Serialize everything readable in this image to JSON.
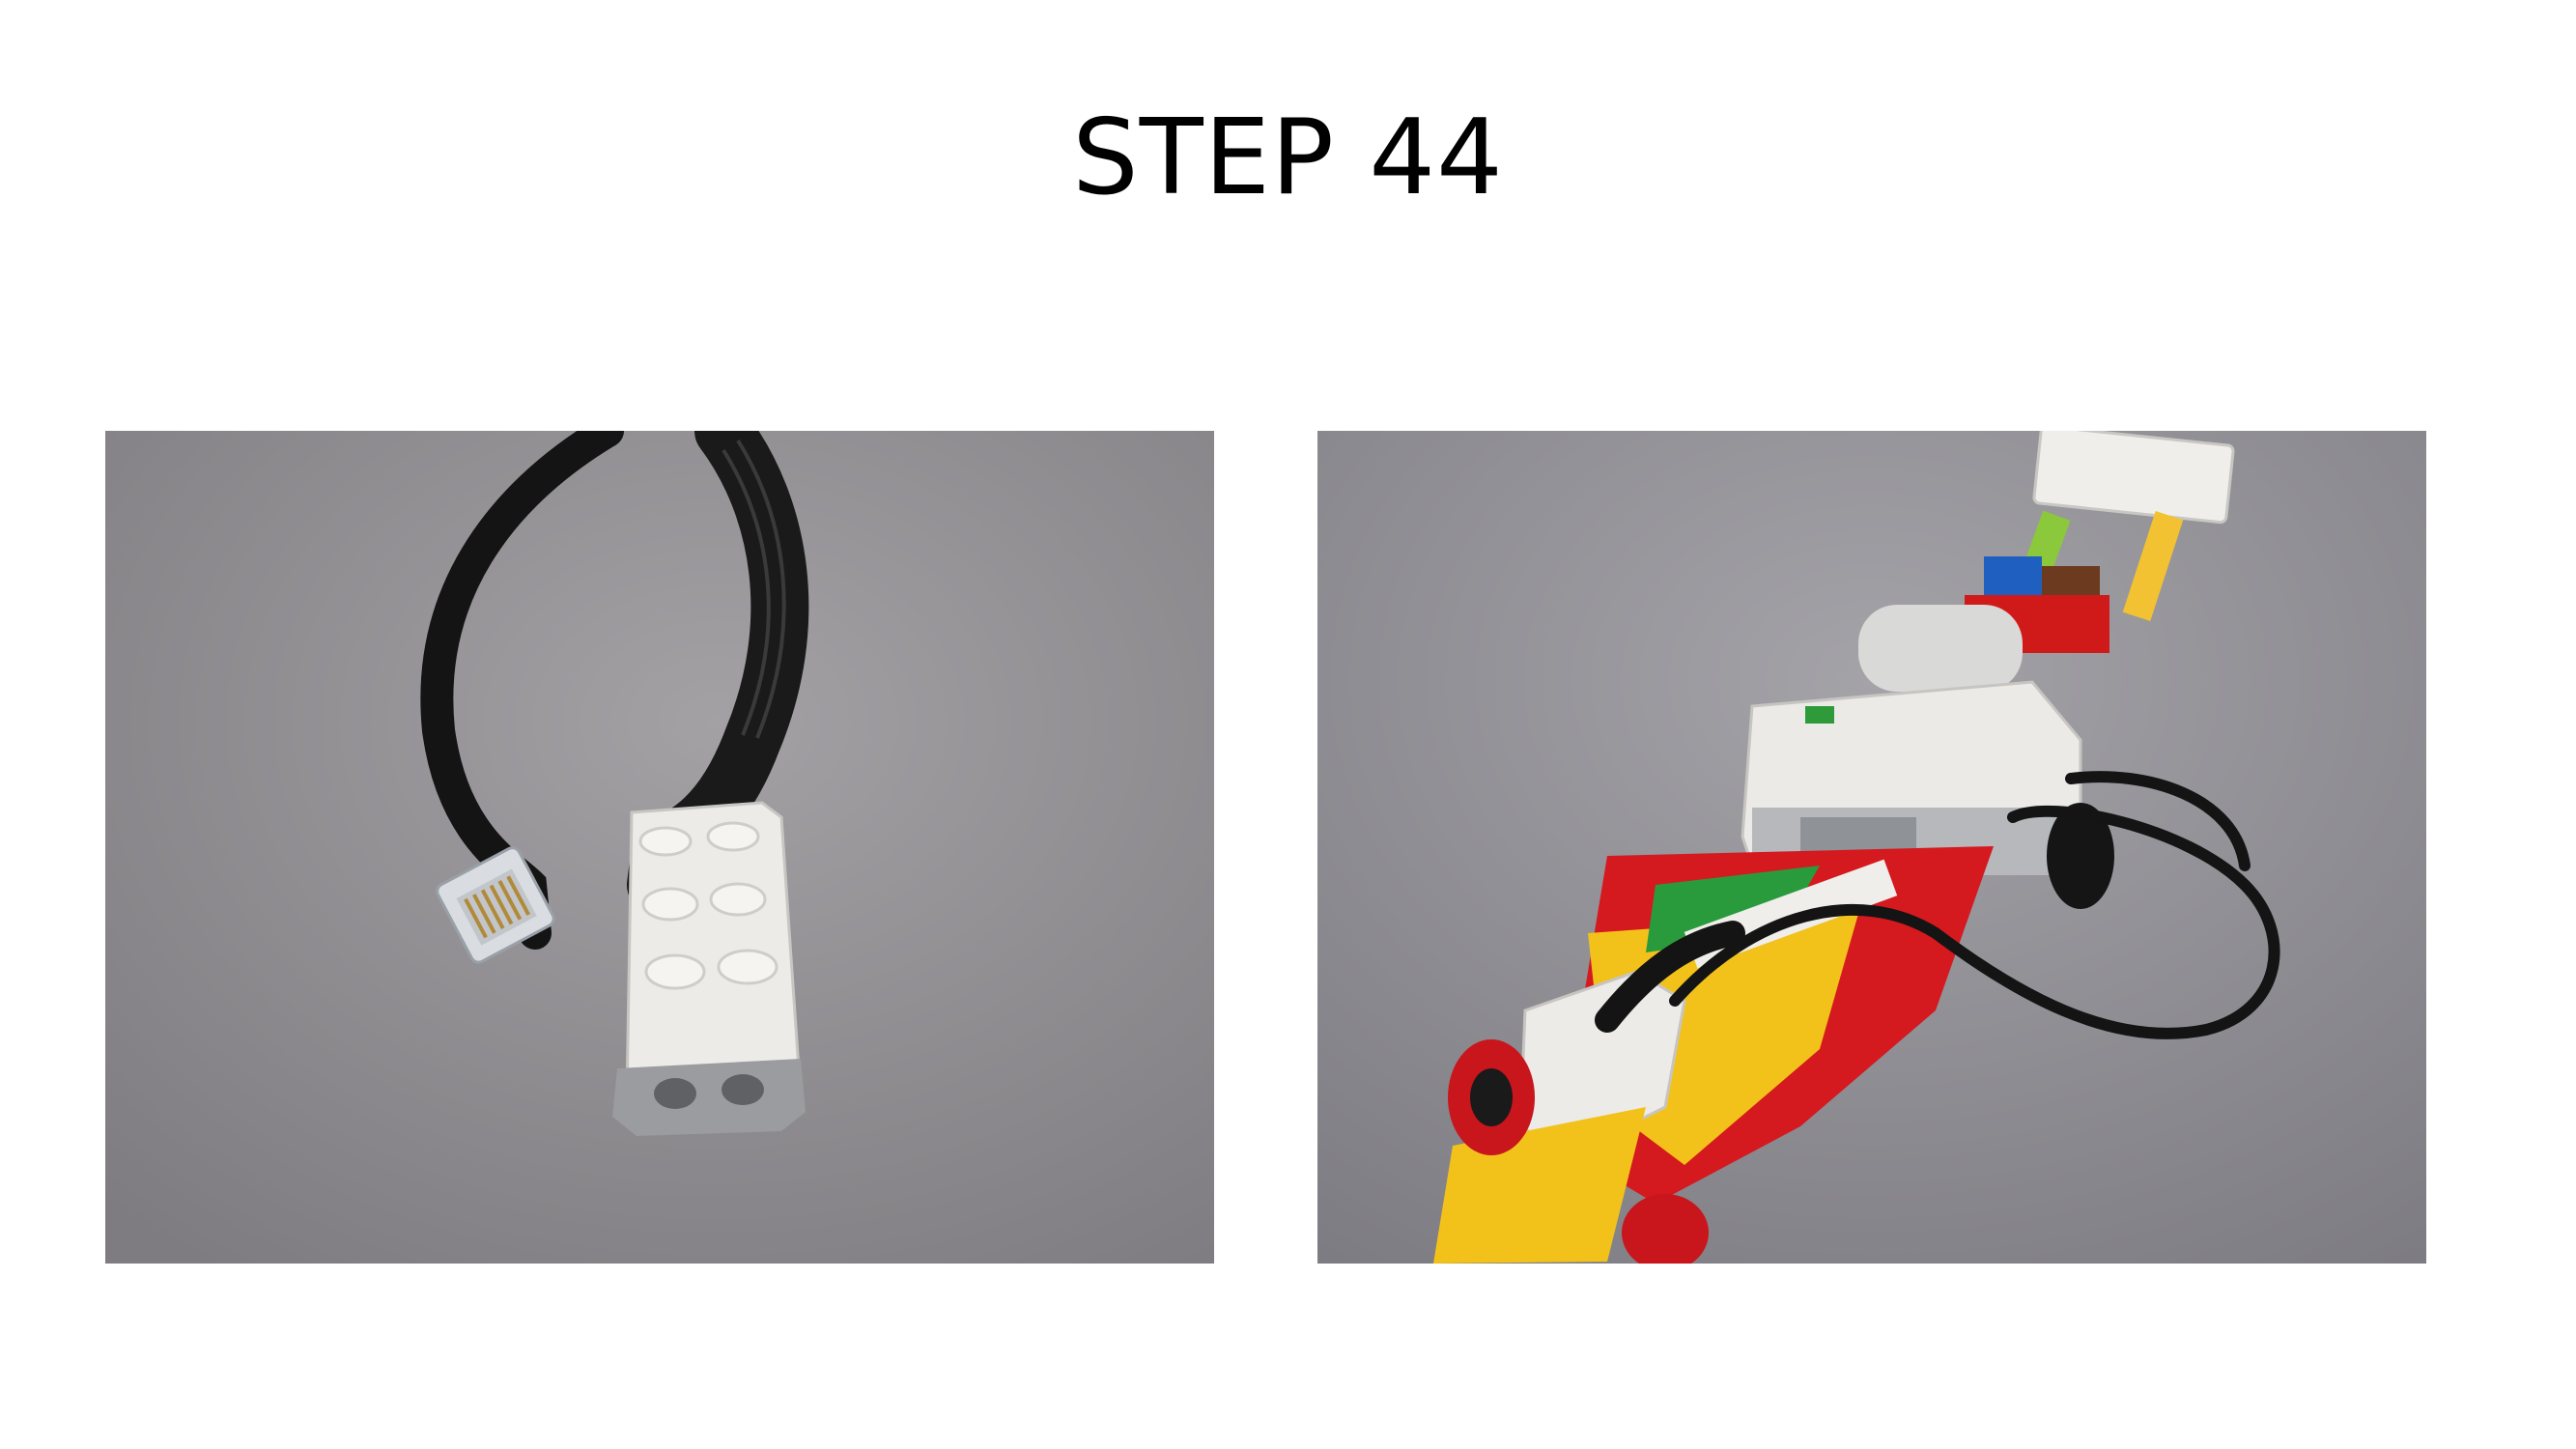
{
  "slide": {
    "title": "STEP 44"
  },
  "photos": [
    {
      "subject": "lego-cable-connector",
      "background": "#8f8d90"
    },
    {
      "subject": "lego-race-car-with-cable",
      "background": "#8e8c92"
    }
  ]
}
